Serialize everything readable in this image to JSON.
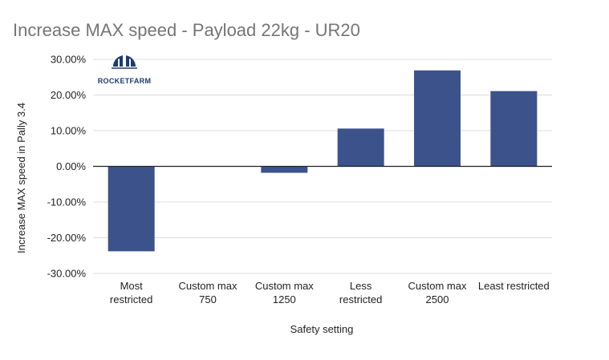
{
  "logo": {
    "text": "ROCKETFARM",
    "color": "#1e3a73"
  },
  "chart_data": {
    "type": "bar",
    "title": "Increase MAX speed - Payload 22kg - UR20",
    "xlabel": "Safety setting",
    "ylabel": "Increase MAX speed in Pally 3.4",
    "categories": [
      [
        "Most",
        "restricted"
      ],
      [
        "Custom max",
        "750"
      ],
      [
        "Custom max",
        "1250"
      ],
      [
        "Less",
        "restricted"
      ],
      [
        "Custom max",
        "2500"
      ],
      [
        "Least restricted"
      ]
    ],
    "series": [
      {
        "values": [
          -23.8,
          0.0,
          -1.8,
          10.6,
          26.9,
          21.1
        ],
        "color": "#3c528b"
      }
    ],
    "ylim": [
      -30,
      30
    ],
    "yticks": [
      30,
      20,
      10,
      0,
      -10,
      -20,
      -30
    ],
    "ytick_labels": [
      "30.00%",
      "20.00%",
      "10.00%",
      "0.00%",
      "-10.00%",
      "-20.00%",
      "-30.00%"
    ],
    "grid": true,
    "legend": "none"
  }
}
